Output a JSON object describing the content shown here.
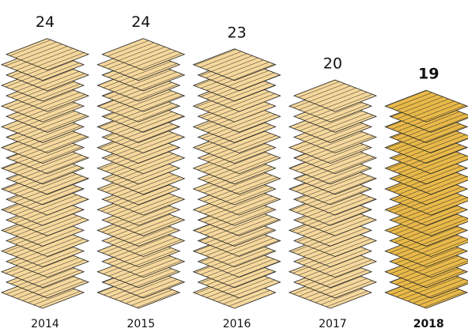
{
  "chart_data": {
    "type": "pictogram",
    "categories": [
      "2014",
      "2015",
      "2016",
      "2017",
      "2018"
    ],
    "values": [
      24,
      24,
      23,
      20,
      19
    ],
    "color": "#f6d89c",
    "highlight_color": "#e9b949",
    "highlight": "2018"
  }
}
